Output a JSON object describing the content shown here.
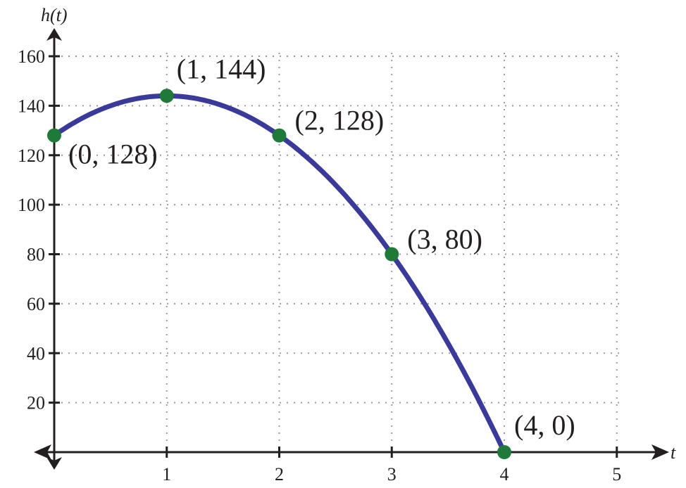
{
  "chart_data": {
    "type": "line",
    "title": "",
    "xlabel": "t",
    "ylabel": "h(t)",
    "xlim": [
      0,
      5
    ],
    "ylim": [
      0,
      160
    ],
    "x_ticks": [
      1,
      2,
      3,
      4,
      5
    ],
    "y_ticks": [
      20,
      40,
      60,
      80,
      100,
      120,
      140,
      160
    ],
    "grid": true,
    "curve": {
      "domain": [
        0,
        4
      ],
      "color": "#3a3a9a",
      "x": [
        0,
        0.5,
        1,
        1.5,
        2,
        2.5,
        3,
        3.5,
        4
      ],
      "y": [
        128,
        140,
        144,
        140,
        128,
        108,
        80,
        44,
        0
      ]
    },
    "points": [
      {
        "x": 0,
        "y": 128,
        "label": "(0, 128)"
      },
      {
        "x": 1,
        "y": 144,
        "label": "(1, 144)"
      },
      {
        "x": 2,
        "y": 128,
        "label": "(2, 128)"
      },
      {
        "x": 3,
        "y": 80,
        "label": "(3, 80)"
      },
      {
        "x": 4,
        "y": 0,
        "label": "(4, 0)"
      }
    ],
    "point_color": "#1f7a3a",
    "axis_color": "#231f20",
    "grid_color": "#9a9a9a"
  }
}
